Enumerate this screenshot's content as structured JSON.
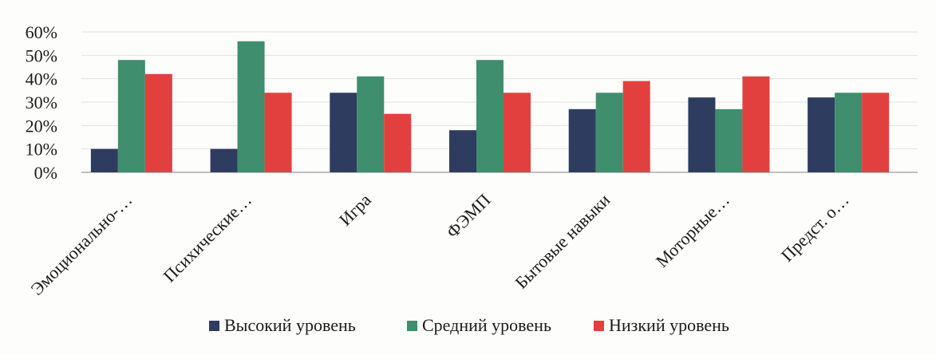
{
  "chart_data": {
    "type": "bar",
    "title": "",
    "xlabel": "",
    "ylabel": "",
    "categories": [
      "Эмоционально-…",
      "Психические…",
      "Игра",
      "ФЭМП",
      "Бытовые навыки",
      "Моторные…",
      "Предст. о…"
    ],
    "series": [
      {
        "name": "Высокий уровень",
        "color": "#2e3d5f",
        "values": [
          10,
          10,
          34,
          18,
          27,
          32,
          32
        ]
      },
      {
        "name": "Средний уровень",
        "color": "#3f8e6e",
        "values": [
          48,
          56,
          41,
          48,
          34,
          27,
          34
        ]
      },
      {
        "name": "Низкий уровень",
        "color": "#e2403f",
        "values": [
          42,
          34,
          25,
          34,
          39,
          41,
          34
        ]
      }
    ],
    "ylim": [
      0,
      60
    ],
    "yticks": [
      "0%",
      "10%",
      "20%",
      "30%",
      "40%",
      "50%",
      "60%"
    ],
    "grid": true,
    "legend_position": "bottom"
  }
}
